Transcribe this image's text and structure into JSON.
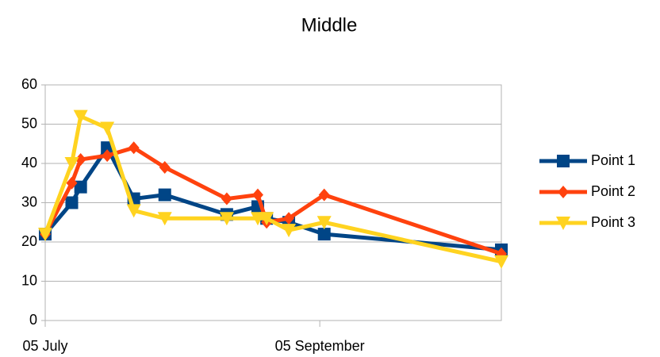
{
  "chart_data": {
    "type": "line",
    "title": "Middle",
    "x": [
      0,
      6,
      8,
      14,
      20,
      27,
      41,
      48,
      50,
      55,
      63,
      103
    ],
    "xlim": [
      0,
      103
    ],
    "xticks": [
      {
        "value": 0,
        "label": "05 July"
      },
      {
        "value": 62,
        "label": "05 September"
      }
    ],
    "ylim": [
      0,
      60
    ],
    "yticks": [
      0,
      10,
      20,
      30,
      40,
      50,
      60
    ],
    "grid": true,
    "legend": "right",
    "series": [
      {
        "name": "Point 1",
        "color": "#004586",
        "marker": "square",
        "values": [
          22,
          30,
          34,
          44,
          31,
          32,
          27,
          29,
          26,
          25,
          22,
          18
        ]
      },
      {
        "name": "Point 2",
        "color": "#ff420e",
        "marker": "diamond",
        "values": [
          22,
          35,
          41,
          42,
          44,
          39,
          31,
          32,
          25,
          26,
          32,
          17
        ]
      },
      {
        "name": "Point 3",
        "color": "#ffd320",
        "marker": "triangle-down",
        "values": [
          22,
          40,
          52,
          49,
          28,
          26,
          26,
          26,
          26,
          23,
          25,
          15
        ]
      }
    ]
  }
}
